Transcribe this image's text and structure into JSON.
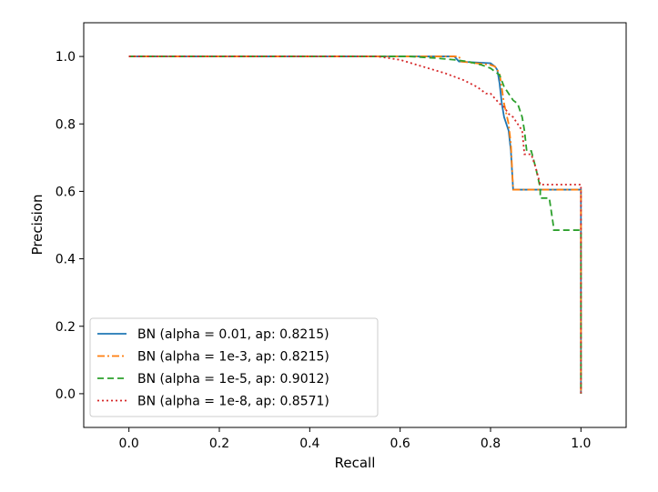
{
  "chart_data": {
    "type": "line",
    "title": "",
    "xlabel": "Recall",
    "ylabel": "Precision",
    "xlim": [
      -0.1,
      1.1
    ],
    "ylim": [
      -0.1,
      1.1
    ],
    "xticks": [
      "0.0",
      "0.2",
      "0.4",
      "0.6",
      "0.8",
      "1.0"
    ],
    "yticks": [
      "0.0",
      "0.2",
      "0.4",
      "0.6",
      "0.8",
      "1.0"
    ],
    "grid": false,
    "legend_position": "lower-left",
    "series": [
      {
        "name": "BN (alpha = 0.01, ap: 0.8215)",
        "color": "#1f77b4",
        "linestyle": "solid",
        "x": [
          0.0,
          0.72,
          0.73,
          0.8,
          0.81,
          0.815,
          0.82,
          0.825,
          0.83,
          0.84,
          0.845,
          0.85,
          1.0,
          1.0
        ],
        "y": [
          1.0,
          1.0,
          0.985,
          0.98,
          0.97,
          0.96,
          0.92,
          0.86,
          0.82,
          0.78,
          0.72,
          0.605,
          0.605,
          0.0
        ]
      },
      {
        "name": "BN (alpha = 1e-3, ap: 0.8215)",
        "color": "#ff7f0e",
        "linestyle": "dashdot",
        "x": [
          0.0,
          0.73,
          0.735,
          0.8,
          0.81,
          0.82,
          0.83,
          0.84,
          0.845,
          0.85,
          1.0,
          1.0
        ],
        "y": [
          1.0,
          1.0,
          0.985,
          0.975,
          0.97,
          0.95,
          0.86,
          0.8,
          0.74,
          0.605,
          0.605,
          0.0
        ]
      },
      {
        "name": "BN (alpha = 1e-5, ap: 0.9012)",
        "color": "#2ca02c",
        "linestyle": "dashed",
        "x": [
          0.0,
          0.62,
          0.68,
          0.72,
          0.75,
          0.78,
          0.8,
          0.82,
          0.83,
          0.84,
          0.85,
          0.86,
          0.87,
          0.875,
          0.88,
          0.89,
          0.9,
          0.91,
          0.91,
          0.93,
          0.94,
          0.94,
          1.0,
          1.0
        ],
        "y": [
          1.0,
          1.0,
          0.995,
          0.99,
          0.985,
          0.975,
          0.965,
          0.945,
          0.91,
          0.89,
          0.87,
          0.86,
          0.82,
          0.78,
          0.72,
          0.72,
          0.67,
          0.61,
          0.58,
          0.58,
          0.49,
          0.485,
          0.485,
          0.0
        ]
      },
      {
        "name": "BN (alpha = 1e-8, ap: 0.8571)",
        "color": "#d62728",
        "linestyle": "dotted",
        "x": [
          0.0,
          0.55,
          0.6,
          0.65,
          0.7,
          0.74,
          0.77,
          0.79,
          0.8,
          0.82,
          0.83,
          0.84,
          0.85,
          0.86,
          0.87,
          0.875,
          0.89,
          0.9,
          0.91,
          0.92,
          1.0,
          1.0
        ],
        "y": [
          1.0,
          1.0,
          0.99,
          0.97,
          0.95,
          0.93,
          0.91,
          0.89,
          0.89,
          0.86,
          0.85,
          0.83,
          0.82,
          0.8,
          0.78,
          0.71,
          0.71,
          0.67,
          0.62,
          0.62,
          0.62,
          0.0
        ]
      }
    ]
  }
}
